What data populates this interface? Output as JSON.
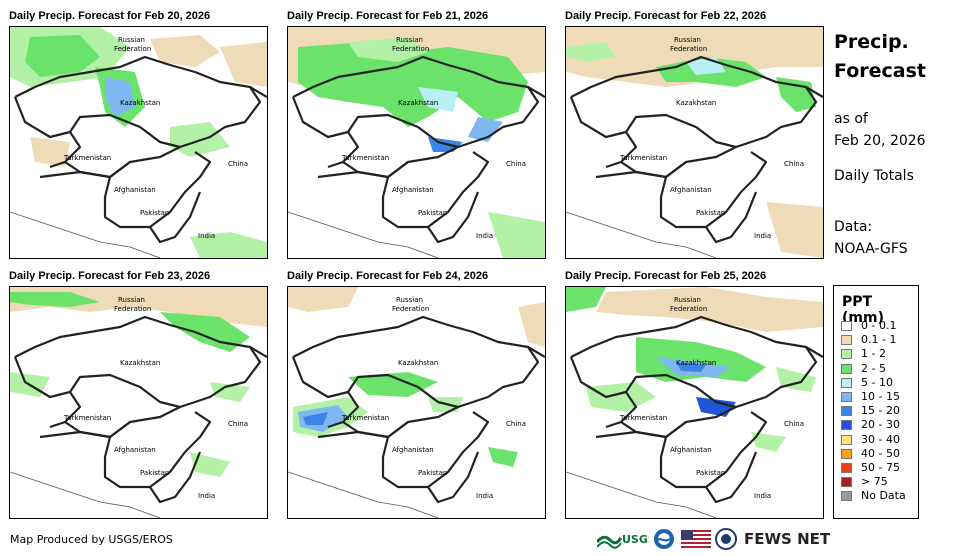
{
  "panels": [
    {
      "title": "Daily Precip. Forecast for Feb 20, 2026"
    },
    {
      "title": "Daily Precip. Forecast for Feb 21, 2026"
    },
    {
      "title": "Daily Precip. Forecast for Feb 22, 2026"
    },
    {
      "title": "Daily Precip. Forecast for Feb 23, 2026"
    },
    {
      "title": "Daily Precip. Forecast for Feb 24, 2026"
    },
    {
      "title": "Daily Precip. Forecast for Feb 25, 2026"
    }
  ],
  "map_labels": {
    "russia_1": "Russian",
    "russia_2": "Federation",
    "kazakhstan": "Kazakhstan",
    "turkmenistan": "Turkmenistan",
    "china": "China",
    "afghanistan": "Afghanistan",
    "pakistan": "Pakistan",
    "india": "India"
  },
  "side": {
    "title_line1": "Precip.",
    "title_line2": "Forecast",
    "asof_line1": "as of",
    "asof_line2": "Feb 20, 2026",
    "totals": "Daily Totals",
    "data_label": "Data:",
    "data_source": "NOAA-GFS"
  },
  "legend": {
    "title": "PPT (mm)",
    "items": [
      {
        "label": "0 - 0.1",
        "color": "#ffffff"
      },
      {
        "label": "0.1 - 1",
        "color": "#efdbb8"
      },
      {
        "label": "1 - 2",
        "color": "#b3f2a6"
      },
      {
        "label": "2 - 5",
        "color": "#6be36b"
      },
      {
        "label": "5 - 10",
        "color": "#b8f0f5"
      },
      {
        "label": "10 - 15",
        "color": "#7fb8f0"
      },
      {
        "label": "15 - 20",
        "color": "#3c84e8"
      },
      {
        "label": "20 - 30",
        "color": "#1f55d6"
      },
      {
        "label": "30 - 40",
        "color": "#ffe27a"
      },
      {
        "label": "40 - 50",
        "color": "#f7a21a"
      },
      {
        "label": "50 - 75",
        "color": "#ea3b1b"
      },
      {
        "label": "> 75",
        "color": "#a81f1f"
      },
      {
        "label": "No Data",
        "color": "#9a9a9a"
      }
    ]
  },
  "footer": {
    "credit": "Map Produced by USGS/EROS",
    "usgs_logo_text": "USGS",
    "fews_net": "FEWS NET"
  }
}
